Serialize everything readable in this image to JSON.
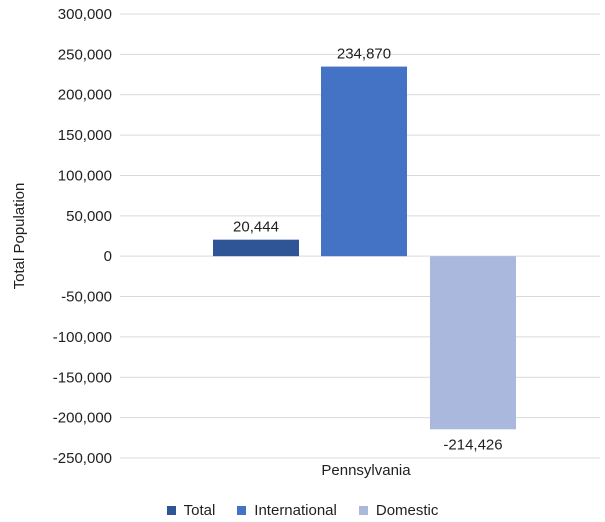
{
  "chart_data": {
    "type": "bar",
    "categories": [
      "Pennsylvania"
    ],
    "series": [
      {
        "name": "Total",
        "values": [
          20444
        ],
        "label": "20,444",
        "color": "#2f5597"
      },
      {
        "name": "International",
        "values": [
          234870
        ],
        "label": "234,870",
        "color": "#4472c4"
      },
      {
        "name": "Domestic",
        "values": [
          -214426
        ],
        "label": "-214,426",
        "color": "#a9b8dc"
      }
    ],
    "ylabel": "Total Population",
    "xlabel": "Pennsylvania",
    "ylim": [
      -250000,
      300000
    ],
    "yticks": [
      300000,
      250000,
      200000,
      150000,
      100000,
      50000,
      0,
      -50000,
      -100000,
      -150000,
      -200000,
      -250000
    ],
    "ytick_labels": [
      "300,000",
      "250,000",
      "200,000",
      "150,000",
      "100,000",
      "50,000",
      "0",
      "-50,000",
      "-100,000",
      "-150,000",
      "-200,000",
      "-250,000"
    ],
    "grid": true,
    "legend_position": "bottom"
  }
}
